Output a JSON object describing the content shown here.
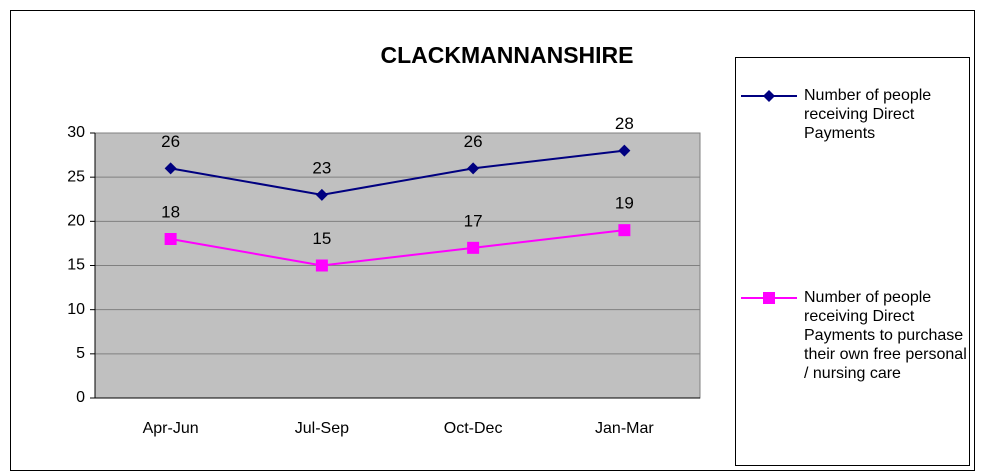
{
  "chart_data": {
    "type": "line",
    "title": "CLACKMANNANSHIRE",
    "categories": [
      "Apr-Jun",
      "Jul-Sep",
      "Oct-Dec",
      "Jan-Mar"
    ],
    "series": [
      {
        "name": "Number of people receiving Direct Payments",
        "color": "#000080",
        "marker": "diamond",
        "values": [
          26,
          23,
          26,
          28
        ]
      },
      {
        "name": "Number of people receiving Direct Payments to purchase their own free personal / nursing care",
        "color": "#ff00ff",
        "marker": "square",
        "values": [
          18,
          15,
          17,
          19
        ]
      }
    ],
    "ylim": [
      0,
      30
    ],
    "yticks": [
      0,
      5,
      10,
      15,
      20,
      25,
      30
    ],
    "grid": true,
    "legend": "right"
  }
}
